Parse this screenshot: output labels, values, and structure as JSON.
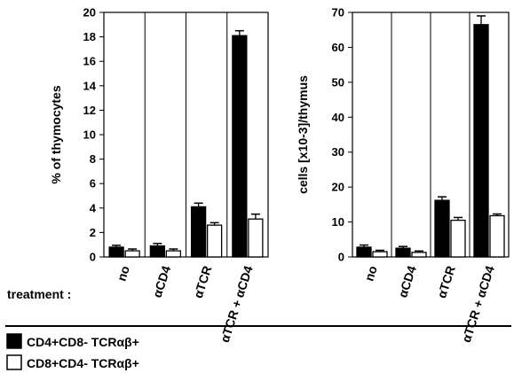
{
  "treatment_label": "treatment :",
  "legend": [
    {
      "label": "CD4+CD8- TCRαβ+",
      "color": "#000000"
    },
    {
      "label": "CD8+CD4- TCRαβ+",
      "color": "#ffffff"
    }
  ],
  "chart_data": [
    {
      "type": "bar",
      "title": "",
      "xlabel": "",
      "ylabel": "% of thymocytes",
      "ylim": [
        0,
        20
      ],
      "yticks": [
        0,
        2,
        4,
        6,
        8,
        10,
        12,
        14,
        16,
        18,
        20
      ],
      "grid": "vertical lines between categories",
      "categories": [
        "no",
        "αCD4",
        "αTCR",
        "αTCR + αCD4"
      ],
      "series": [
        {
          "name": "CD4+CD8- TCRαβ+",
          "values": [
            0.8,
            0.9,
            4.1,
            18.1
          ],
          "errors": [
            0.15,
            0.2,
            0.3,
            0.4
          ]
        },
        {
          "name": "CD8+CD4- TCRαβ+",
          "values": [
            0.5,
            0.5,
            2.6,
            3.1
          ],
          "errors": [
            0.15,
            0.15,
            0.2,
            0.4
          ]
        }
      ]
    },
    {
      "type": "bar",
      "title": "",
      "xlabel": "",
      "ylabel": "cells [x10-3]/thymus",
      "ylim": [
        0,
        70
      ],
      "yticks": [
        0,
        10,
        20,
        30,
        40,
        50,
        60,
        70
      ],
      "grid": "vertical lines between categories",
      "categories": [
        "no",
        "αCD4",
        "αTCR",
        "αTCR + αCD4"
      ],
      "series": [
        {
          "name": "CD4+CD8- TCRαβ+",
          "values": [
            2.8,
            2.5,
            16.2,
            66.5
          ],
          "errors": [
            0.6,
            0.5,
            1.0,
            2.5
          ]
        },
        {
          "name": "CD8+CD4- TCRαβ+",
          "values": [
            1.5,
            1.3,
            10.5,
            11.8
          ],
          "errors": [
            0.4,
            0.4,
            0.8,
            0.5
          ]
        }
      ]
    }
  ]
}
